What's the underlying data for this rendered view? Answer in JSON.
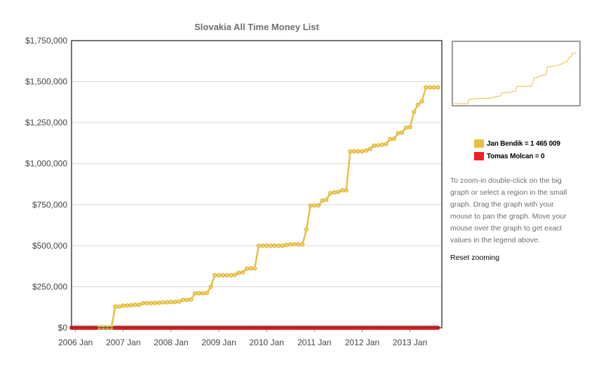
{
  "title": "Slovakia All Time Money List",
  "help_text": "To zoom-in double-click on the big graph or select a region in the small graph. Drag the graph with your mouse to pan the graph. Move your mouse over the graph to get exact values in the legend above.",
  "reset_label": "Reset zooming",
  "legend": [
    {
      "label": "Jan Bendik = 1 465 009",
      "color": "#e8c040"
    },
    {
      "label": "Tomas Molcan = 0",
      "color": "#ee2222"
    }
  ],
  "chart_data": {
    "type": "line",
    "title": "Slovakia All Time Money List",
    "xlabel": "",
    "ylabel": "",
    "xlim": [
      "2005-12",
      "2013-09"
    ],
    "ylim": [
      0,
      1750000
    ],
    "y_ticks": [
      0,
      250000,
      500000,
      750000,
      1000000,
      1250000,
      1500000,
      1750000
    ],
    "y_tick_labels": [
      "$0",
      "$250,000",
      "$500,000",
      "$750,000",
      "$1,000,000",
      "$1,250,000",
      "$1,500,000",
      "$1,750,000"
    ],
    "x_ticks": [
      "2006-01",
      "2007-01",
      "2008-01",
      "2009-01",
      "2010-01",
      "2011-01",
      "2012-01",
      "2013-01"
    ],
    "x_tick_labels": [
      "2006 Jan",
      "2007 Jan",
      "2008 Jan",
      "2009 Jan",
      "2010 Jan",
      "2011 Jan",
      "2012 Jan",
      "2013 Jan"
    ],
    "grid": true,
    "legend_position": "right",
    "series": [
      {
        "name": "Jan Bendik",
        "color": "#e8c040",
        "points": [
          [
            "2006-07",
            0
          ],
          [
            "2006-08",
            0
          ],
          [
            "2006-09",
            0
          ],
          [
            "2006-10",
            0
          ],
          [
            "2006-11",
            130000
          ],
          [
            "2006-12",
            130000
          ],
          [
            "2007-01",
            135000
          ],
          [
            "2007-02",
            135000
          ],
          [
            "2007-03",
            138000
          ],
          [
            "2007-04",
            140000
          ],
          [
            "2007-05",
            140000
          ],
          [
            "2007-06",
            150000
          ],
          [
            "2007-07",
            150000
          ],
          [
            "2007-08",
            150000
          ],
          [
            "2007-09",
            152000
          ],
          [
            "2007-10",
            152000
          ],
          [
            "2007-11",
            155000
          ],
          [
            "2007-12",
            155000
          ],
          [
            "2008-01",
            157000
          ],
          [
            "2008-02",
            157000
          ],
          [
            "2008-03",
            160000
          ],
          [
            "2008-04",
            170000
          ],
          [
            "2008-05",
            170000
          ],
          [
            "2008-06",
            172000
          ],
          [
            "2008-07",
            210000
          ],
          [
            "2008-08",
            210000
          ],
          [
            "2008-09",
            210000
          ],
          [
            "2008-10",
            212000
          ],
          [
            "2008-11",
            250000
          ],
          [
            "2008-12",
            320000
          ],
          [
            "2009-01",
            320000
          ],
          [
            "2009-02",
            320000
          ],
          [
            "2009-03",
            320000
          ],
          [
            "2009-04",
            320000
          ],
          [
            "2009-05",
            322000
          ],
          [
            "2009-06",
            335000
          ],
          [
            "2009-07",
            338000
          ],
          [
            "2009-08",
            360000
          ],
          [
            "2009-09",
            362000
          ],
          [
            "2009-10",
            362000
          ],
          [
            "2009-11",
            500000
          ],
          [
            "2009-12",
            500000
          ],
          [
            "2010-01",
            500000
          ],
          [
            "2010-02",
            500000
          ],
          [
            "2010-03",
            500000
          ],
          [
            "2010-04",
            500000
          ],
          [
            "2010-05",
            500000
          ],
          [
            "2010-06",
            505000
          ],
          [
            "2010-07",
            508000
          ],
          [
            "2010-08",
            508000
          ],
          [
            "2010-09",
            508000
          ],
          [
            "2010-10",
            508000
          ],
          [
            "2010-11",
            600000
          ],
          [
            "2010-12",
            745000
          ],
          [
            "2011-01",
            745000
          ],
          [
            "2011-02",
            745000
          ],
          [
            "2011-03",
            775000
          ],
          [
            "2011-04",
            780000
          ],
          [
            "2011-05",
            820000
          ],
          [
            "2011-06",
            825000
          ],
          [
            "2011-07",
            828000
          ],
          [
            "2011-08",
            838000
          ],
          [
            "2011-09",
            838000
          ],
          [
            "2011-10",
            1075000
          ],
          [
            "2011-11",
            1075000
          ],
          [
            "2011-12",
            1075000
          ],
          [
            "2012-01",
            1075000
          ],
          [
            "2012-02",
            1080000
          ],
          [
            "2012-03",
            1090000
          ],
          [
            "2012-04",
            1110000
          ],
          [
            "2012-05",
            1112000
          ],
          [
            "2012-06",
            1115000
          ],
          [
            "2012-07",
            1120000
          ],
          [
            "2012-08",
            1150000
          ],
          [
            "2012-09",
            1152000
          ],
          [
            "2012-10",
            1185000
          ],
          [
            "2012-11",
            1190000
          ],
          [
            "2012-12",
            1220000
          ],
          [
            "2013-01",
            1222000
          ],
          [
            "2013-02",
            1315000
          ],
          [
            "2013-03",
            1360000
          ],
          [
            "2013-04",
            1380000
          ],
          [
            "2013-05",
            1465009
          ],
          [
            "2013-06",
            1465009
          ],
          [
            "2013-07",
            1465009
          ],
          [
            "2013-08",
            1465009
          ]
        ]
      },
      {
        "name": "Tomas Molcan",
        "color": "#ee2222",
        "points_from": "2005-12",
        "points_to": "2013-08",
        "constant_value": 0
      }
    ]
  }
}
